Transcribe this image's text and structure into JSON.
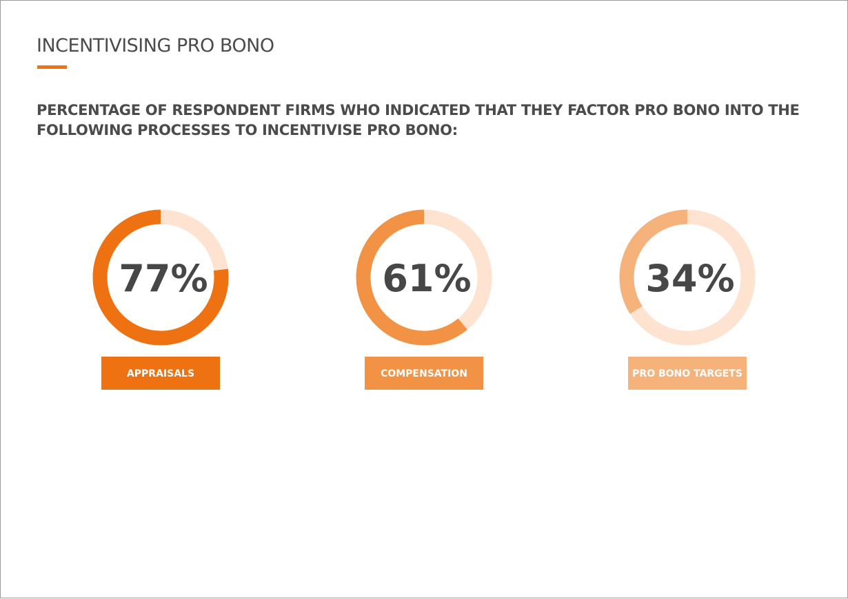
{
  "page": {
    "title": "INCENTIVISING PRO BONO",
    "subtitle": "PERCENTAGE OF RESPONDENT FIRMS WHO INDICATED THAT THEY FACTOR PRO BONO INTO THE FOLLOWING PROCESSES TO INCENTIVISE PRO BONO:"
  },
  "colors": {
    "accent": "#ee7212"
  },
  "chart_data": {
    "type": "pie",
    "style": "donut",
    "unit": "%",
    "max": 100,
    "items": [
      {
        "label": "APPRAISALS",
        "value": 77,
        "display": "77%",
        "color": "#ee7212",
        "track_color": "#fde3d0"
      },
      {
        "label": "COMPENSATION",
        "value": 61,
        "display": "61%",
        "color": "#f29245",
        "track_color": "#fde3d0"
      },
      {
        "label": "PRO BONO TARGETS",
        "value": 34,
        "display": "34%",
        "color": "#f6b27b",
        "track_color": "#fde3d0"
      }
    ]
  }
}
